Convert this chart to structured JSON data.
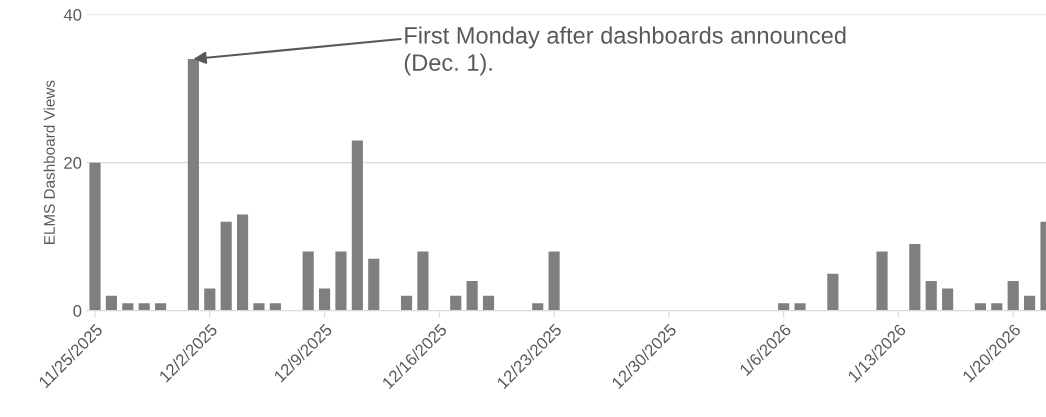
{
  "chart_data": {
    "type": "bar",
    "ylabel": "ELMS Dashboard Views",
    "x": [
      "2025-11-25",
      "2025-11-26",
      "2025-11-27",
      "2025-11-28",
      "2025-11-29",
      "2025-12-01",
      "2025-12-02",
      "2025-12-03",
      "2025-12-04",
      "2025-12-05",
      "2025-12-06",
      "2025-12-08",
      "2025-12-09",
      "2025-12-10",
      "2025-12-11",
      "2025-12-12",
      "2025-12-14",
      "2025-12-15",
      "2025-12-17",
      "2025-12-18",
      "2025-12-19",
      "2025-12-22",
      "2025-12-23",
      "2026-01-06",
      "2026-01-07",
      "2026-01-09",
      "2026-01-12",
      "2026-01-14",
      "2026-01-15",
      "2026-01-16",
      "2026-01-18",
      "2026-01-19",
      "2026-01-20",
      "2026-01-21",
      "2026-01-22"
    ],
    "series": [
      {
        "color": "#7f7f7f",
        "values": [
          20,
          2,
          1,
          1,
          1,
          34,
          3,
          12,
          13,
          1,
          1,
          8,
          3,
          8,
          23,
          7,
          2,
          8,
          2,
          4,
          2,
          1,
          8,
          1,
          1,
          5,
          8,
          9,
          4,
          3,
          1,
          1,
          4,
          2,
          12
        ]
      }
    ],
    "xlim": [
      "2025-11-24T12:00",
      "2026-01-22T00:00"
    ],
    "xticks": [
      {
        "value": "2025-11-25",
        "label": "11/25/2025"
      },
      {
        "value": "2025-12-02",
        "label": "12/2/2025"
      },
      {
        "value": "2025-12-09",
        "label": "12/9/2025"
      },
      {
        "value": "2025-12-16",
        "label": "12/16/2025"
      },
      {
        "value": "2025-12-23",
        "label": "12/23/2025"
      },
      {
        "value": "2025-12-30",
        "label": "12/30/2025"
      },
      {
        "value": "2026-01-06",
        "label": "1/6/2026"
      },
      {
        "value": "2026-01-13",
        "label": "1/13/2026"
      },
      {
        "value": "2026-01-20",
        "label": "1/20/2026"
      }
    ],
    "ylim": [
      0,
      40
    ],
    "yticks": [
      0,
      20,
      40
    ],
    "grid": "y",
    "annotations": [
      {
        "text": "First Monday after dashboards announced\n(Dec. 1).",
        "x": "2025-12-01",
        "y": 34
      }
    ]
  }
}
